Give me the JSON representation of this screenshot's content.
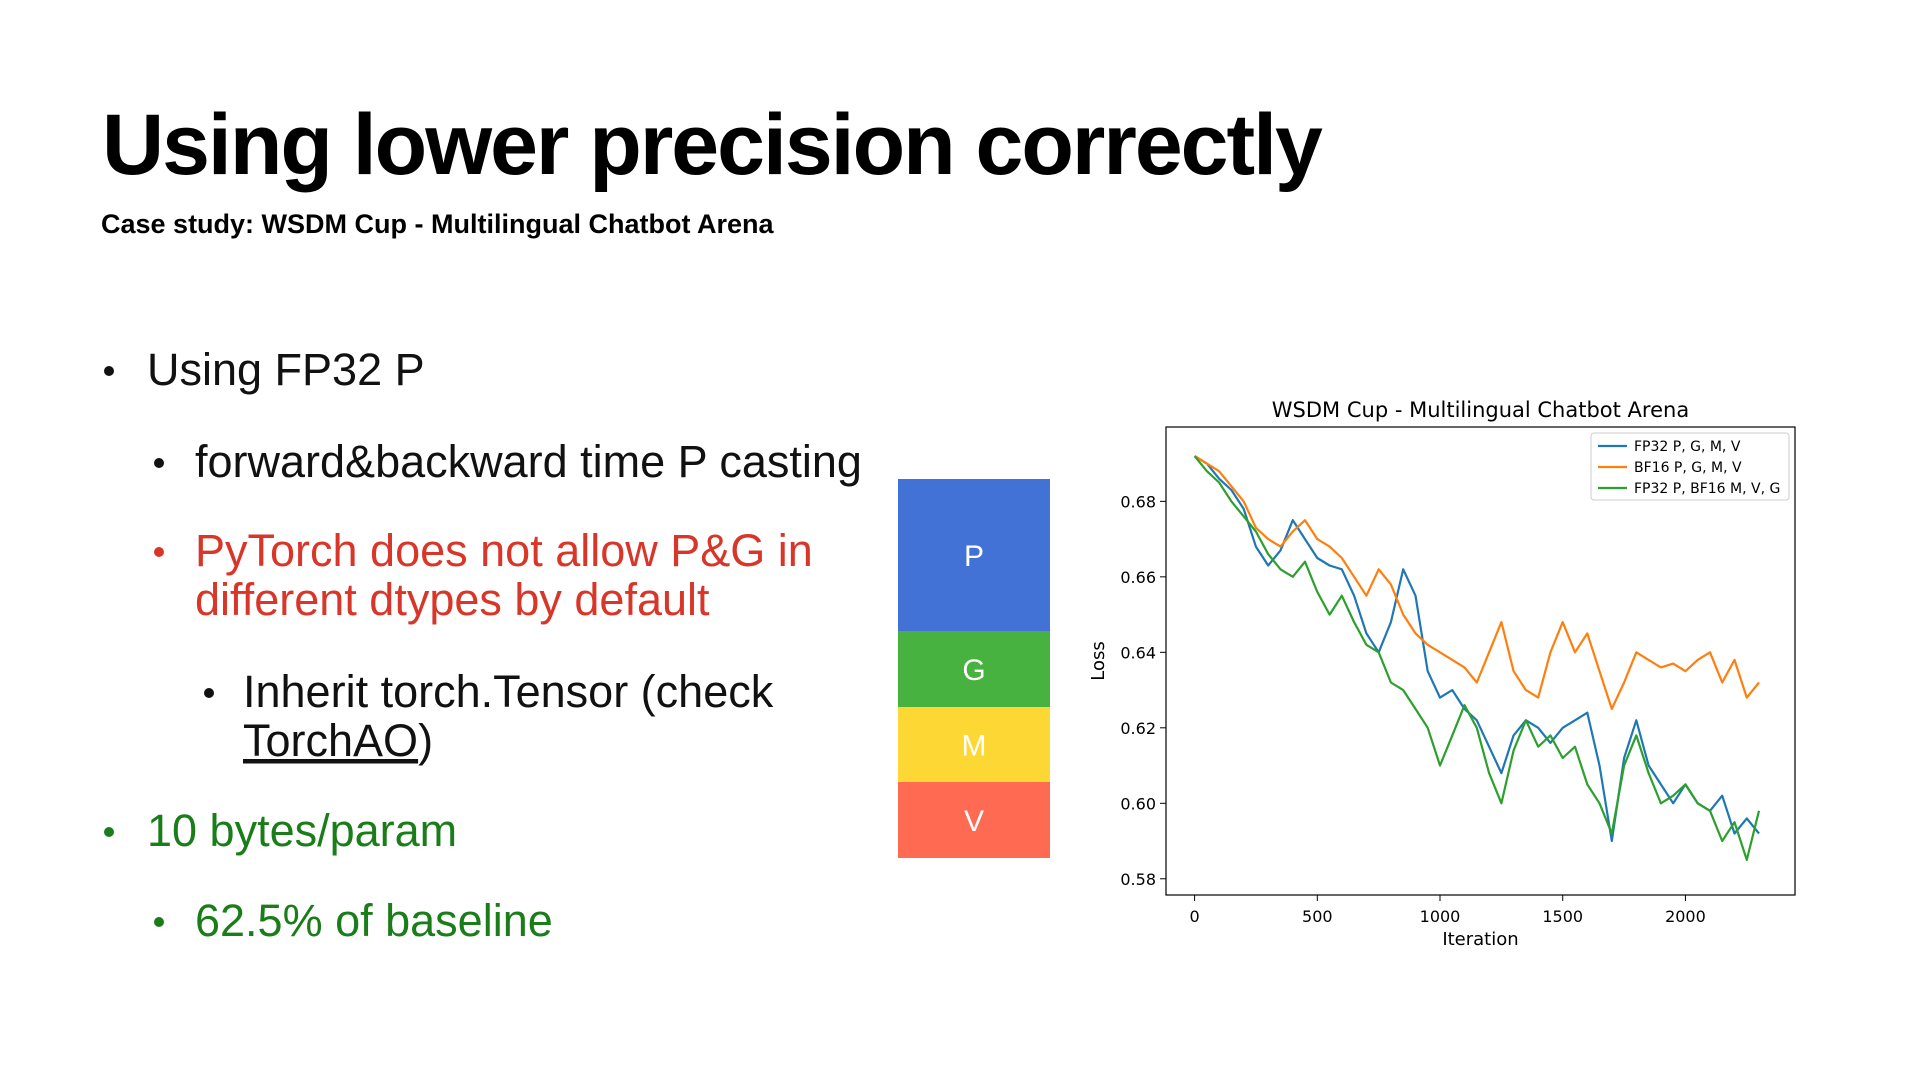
{
  "title": "Using lower precision correctly",
  "subtitle": "Case study: WSDM Cup - Multilingual Chatbot Arena",
  "bullets": [
    {
      "level": 1,
      "color": "#111111",
      "lines": [
        "Using FP32 P"
      ]
    },
    {
      "level": 2,
      "color": "#111111",
      "lines": [
        "forward&backward time P casting"
      ]
    },
    {
      "level": 2,
      "color": "#d9362a",
      "lines": [
        "PyTorch does not allow P&G in",
        "different dtypes  by default"
      ]
    },
    {
      "level": 3,
      "color": "#111111",
      "lines": [
        "Inherit torch.Tensor (check"
      ],
      "link": "TorchAO",
      "after_link": ")"
    },
    {
      "level": 1,
      "color": "#1a7d1a",
      "lines": [
        "10 bytes/param"
      ]
    },
    {
      "level": 2,
      "color": "#1a7d1a",
      "lines": [
        "62.5% of baseline"
      ]
    }
  ],
  "blocks": [
    {
      "label": "P",
      "color": "#4272d6"
    },
    {
      "label": "G",
      "color": "#47b23f"
    },
    {
      "label": "M",
      "color": "#fdd835"
    },
    {
      "label": "V",
      "color": "#fe6b52"
    }
  ],
  "chart_data": {
    "type": "line",
    "title": "WSDM Cup - Multilingual Chatbot Arena",
    "x_label": "Iteration",
    "y_label": "Loss",
    "legend": "upper right",
    "xlim": [
      -116.5,
      2446.5
    ],
    "xticks": [
      0,
      500,
      1000,
      1500,
      2000
    ],
    "ylim": [
      0.5757,
      0.6997
    ],
    "yticks": [
      0.58,
      {
        "value": 0.6,
        "label": "0.60"
      },
      0.62,
      0.64,
      0.66,
      0.68
    ],
    "x": [
      0,
      50,
      100,
      150,
      200,
      250,
      300,
      350,
      400,
      450,
      500,
      550,
      600,
      650,
      700,
      750,
      800,
      850,
      900,
      950,
      1000,
      1050,
      1100,
      1150,
      1200,
      1250,
      1300,
      1350,
      1400,
      1450,
      1500,
      1550,
      1600,
      1650,
      1700,
      1750,
      1800,
      1850,
      1900,
      1950,
      2000,
      2050,
      2100,
      2150,
      2200,
      2250,
      2300
    ],
    "series": [
      {
        "name": "FP32 P, G, M, V",
        "color": "#1f77b4",
        "values": [
          0.692,
          0.69,
          0.686,
          0.683,
          0.678,
          0.668,
          0.663,
          0.667,
          0.675,
          0.67,
          0.665,
          0.663,
          0.662,
          0.655,
          0.645,
          0.64,
          0.648,
          0.662,
          0.655,
          0.635,
          0.628,
          0.63,
          0.625,
          0.622,
          0.615,
          0.608,
          0.618,
          0.622,
          0.62,
          0.616,
          0.62,
          0.622,
          0.624,
          0.61,
          0.59,
          0.612,
          0.622,
          0.61,
          0.605,
          0.6,
          0.605,
          0.6,
          0.598,
          0.602,
          0.592,
          0.596,
          0.592
        ]
      },
      {
        "name": "BF16 P, G, M, V",
        "color": "#ff7f0e",
        "values": [
          0.692,
          0.69,
          0.688,
          0.684,
          0.68,
          0.673,
          0.67,
          0.668,
          0.672,
          0.675,
          0.67,
          0.668,
          0.665,
          0.66,
          0.655,
          0.662,
          0.658,
          0.65,
          0.645,
          0.642,
          0.64,
          0.638,
          0.636,
          0.632,
          0.64,
          0.648,
          0.635,
          0.63,
          0.628,
          0.64,
          0.648,
          0.64,
          0.645,
          0.635,
          0.625,
          0.632,
          0.64,
          0.638,
          0.636,
          0.637,
          0.635,
          0.638,
          0.64,
          0.632,
          0.638,
          0.628,
          0.632
        ]
      },
      {
        "name": "FP32 P, BF16 M, V, G",
        "color": "#2ca02c",
        "values": [
          0.692,
          0.688,
          0.685,
          0.68,
          0.676,
          0.672,
          0.666,
          0.662,
          0.66,
          0.664,
          0.656,
          0.65,
          0.655,
          0.648,
          0.642,
          0.64,
          0.632,
          0.63,
          0.625,
          0.62,
          0.61,
          0.618,
          0.626,
          0.62,
          0.608,
          0.6,
          0.614,
          0.622,
          0.615,
          0.618,
          0.612,
          0.615,
          0.605,
          0.6,
          0.592,
          0.61,
          0.618,
          0.608,
          0.6,
          0.602,
          0.605,
          0.6,
          0.598,
          0.59,
          0.595,
          0.585,
          0.598
        ]
      }
    ]
  }
}
